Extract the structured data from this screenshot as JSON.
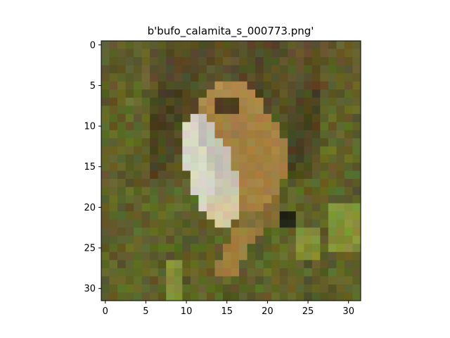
{
  "figure": {
    "title": "b'bufo_calamita_s_000773.png'",
    "x_ticks": [
      "0",
      "5",
      "10",
      "15",
      "20",
      "25",
      "30"
    ],
    "y_ticks": [
      "0",
      "5",
      "10",
      "15",
      "20",
      "25",
      "30"
    ]
  },
  "image": {
    "subject": "frog-in-grass",
    "grid_size": 32,
    "colors": {
      "background_dark": "#3d3a1e",
      "background_mid": "#5a5226",
      "grass_green": "#6d7a2e",
      "grass_bright": "#8fa03a",
      "frog_body": "#9a7a3e",
      "frog_light": "#b8904a",
      "frog_belly": "#d8d6c6",
      "frog_belly_shadow": "#b9b7a4",
      "frog_eye": "#4a4020",
      "frog_throat": "#d2c08e"
    }
  }
}
